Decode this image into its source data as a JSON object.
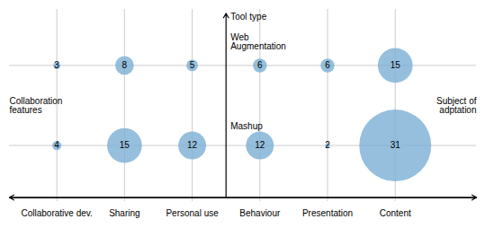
{
  "chart_data": {
    "type": "bubble",
    "annotation": "Tool type",
    "categories": [
      "Collaborative dev.",
      "Sharing",
      "Personal use",
      "Behaviour",
      "Presentation",
      "Content"
    ],
    "groups": [
      {
        "name": "Collaboration\nfeatures",
        "categories": [
          "Collaborative dev.",
          "Sharing",
          "Personal use"
        ]
      },
      {
        "name": "Subject of\nadptation",
        "categories": [
          "Behaviour",
          "Presentation",
          "Content"
        ]
      }
    ],
    "series": [
      {
        "name": "Web\nAugmentation",
        "values": [
          3,
          8,
          5,
          6,
          6,
          15
        ]
      },
      {
        "name": "Mashup",
        "values": [
          4,
          15,
          12,
          12,
          2,
          31
        ]
      }
    ],
    "color": "#7aafd4",
    "data_labels": true,
    "grid": true,
    "tick_labels": "x"
  }
}
